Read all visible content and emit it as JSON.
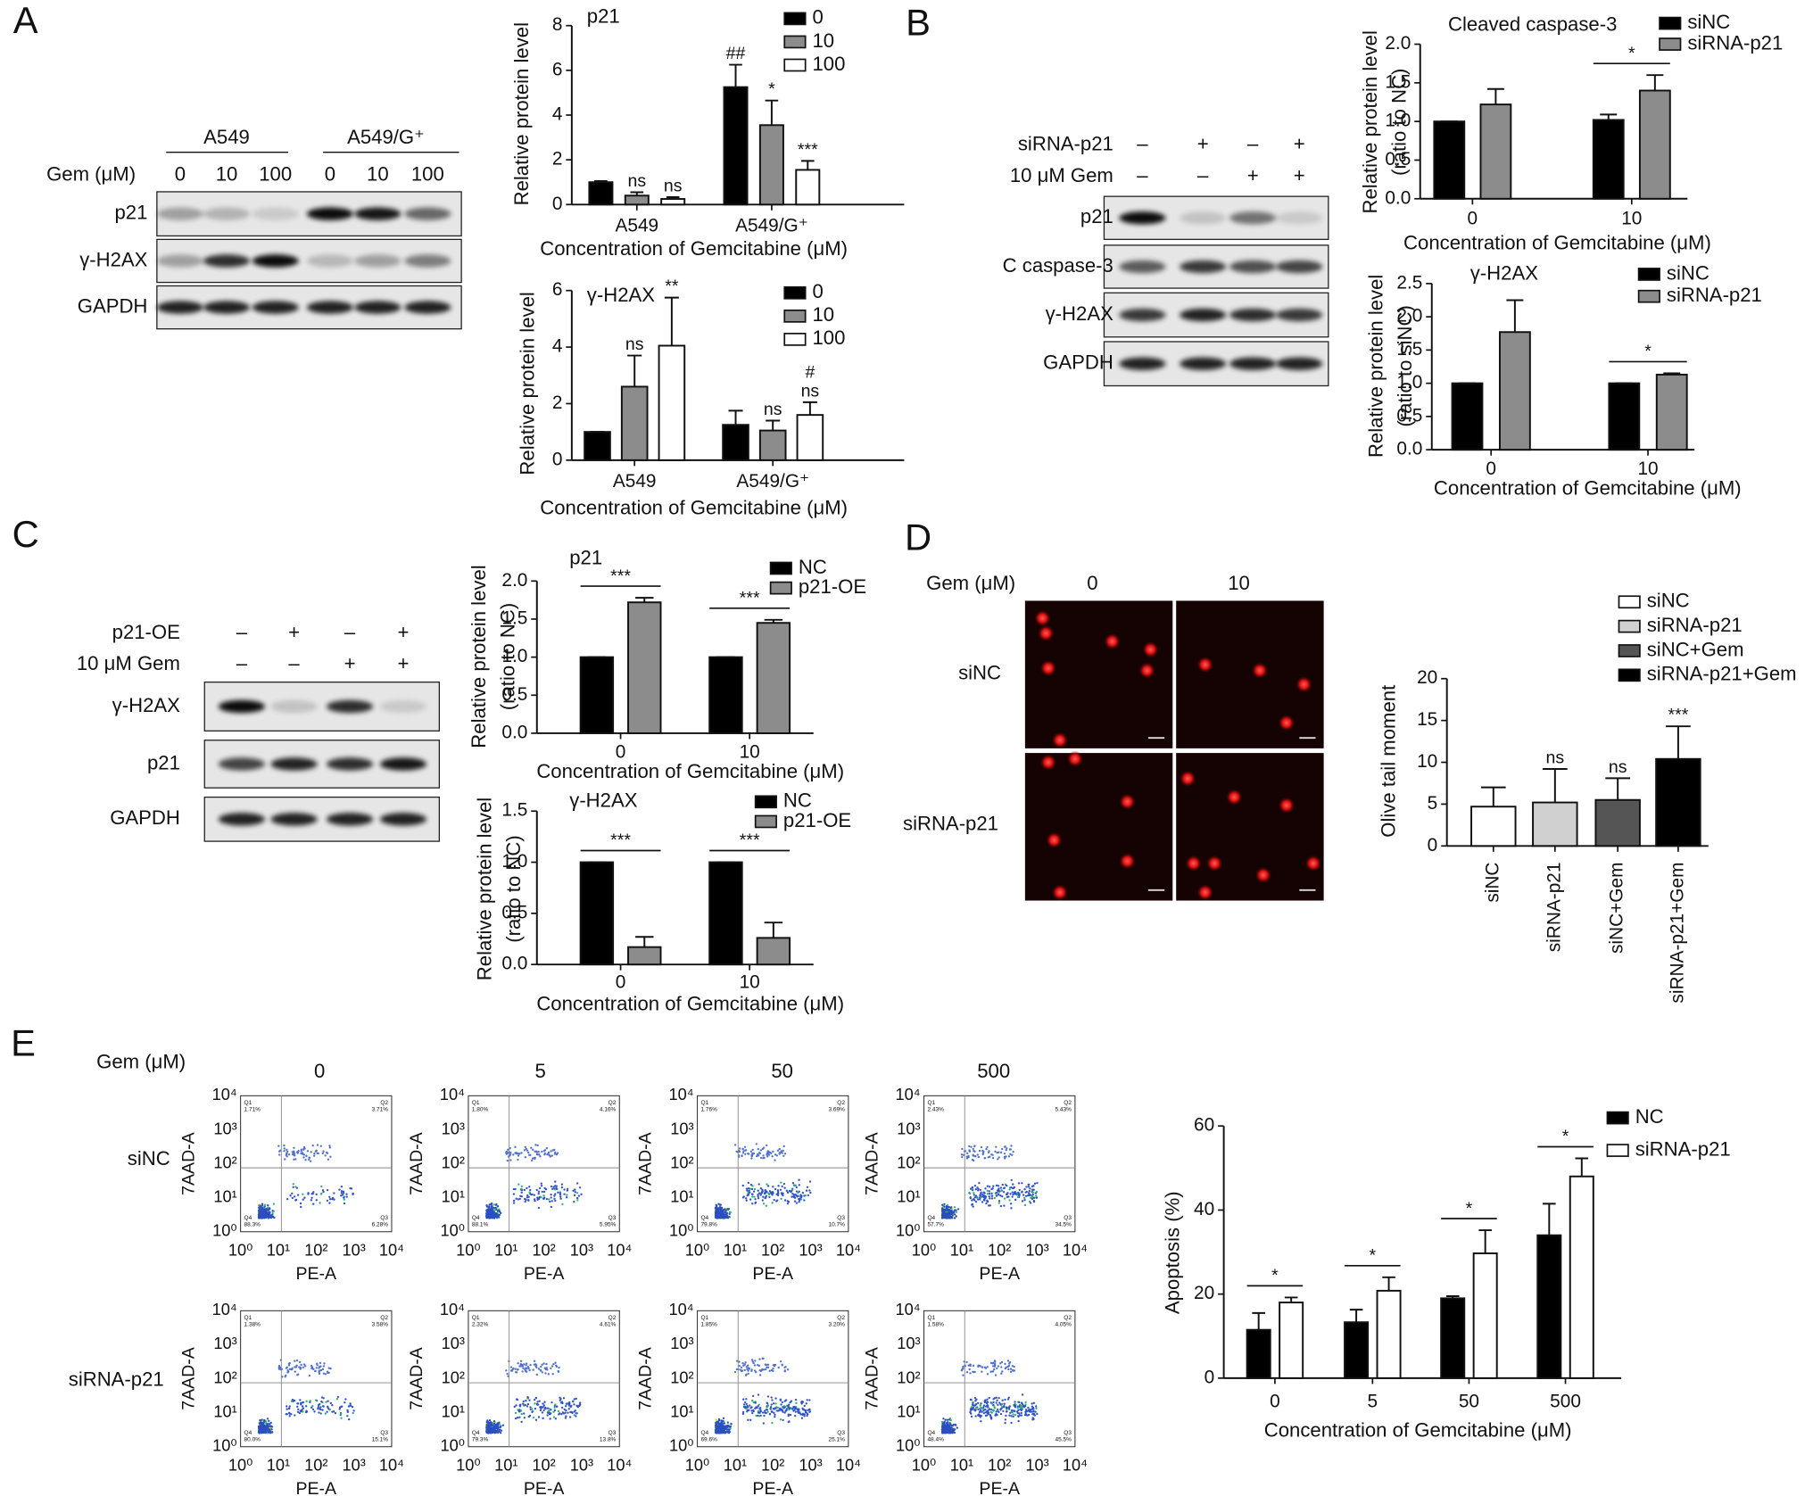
{
  "panel_labels": [
    "A",
    "B",
    "C",
    "D",
    "E"
  ],
  "blot_A": {
    "groups": [
      "A549",
      "A549/G⁺"
    ],
    "condition": "Gem (μM)",
    "lanes": [
      "0",
      "10",
      "100",
      "0",
      "10",
      "100"
    ],
    "rows": [
      "p21",
      "γ-H2AX",
      "GAPDH"
    ]
  },
  "blot_B": {
    "conditions": [
      {
        "name": "siRNA-p21",
        "lanes": [
          "–",
          "+",
          "–",
          "+"
        ]
      },
      {
        "name": "10 μM Gem",
        "lanes": [
          "–",
          "–",
          "+",
          "+"
        ]
      }
    ],
    "rows": [
      "p21",
      "C caspase-3",
      "γ-H2AX",
      "GAPDH"
    ]
  },
  "blot_C": {
    "conditions": [
      {
        "name": "p21-OE",
        "lanes": [
          "–",
          "+",
          "–",
          "+"
        ]
      },
      {
        "name": "10 μM Gem",
        "lanes": [
          "–",
          "–",
          "+",
          "+"
        ]
      }
    ],
    "rows": [
      "γ-H2AX",
      "p21",
      "GAPDH"
    ]
  },
  "comet_D": {
    "condition": "Gem (μM)",
    "columns": [
      "0",
      "10"
    ],
    "rows": [
      "siNC",
      "siRNA-p21"
    ]
  },
  "flow_E": {
    "condition": "Gem (μM)",
    "columns": [
      "0",
      "5",
      "50",
      "500"
    ],
    "rows": [
      "siNC",
      "siRNA-p21"
    ],
    "y_label": "7AAD-A",
    "x_label": "PE-A",
    "ticks": [
      "10⁰",
      "10¹",
      "10²",
      "10³",
      "10⁴"
    ],
    "quadrants": [
      "Q1",
      "Q2",
      "Q3",
      "Q4"
    ],
    "percentages": [
      [
        [
          "1.71%",
          "3.71%",
          "6.28%",
          "88.3%"
        ],
        [
          "1.80%",
          "4.16%",
          "5.95%",
          "88.1%"
        ],
        [
          "1.76%",
          "3.69%",
          "10.7%",
          "79.8%"
        ],
        [
          "2.43%",
          "5.43%",
          "34.5%",
          "57.7%"
        ]
      ],
      [
        [
          "1.38%",
          "3.58%",
          "15.1%",
          "80.0%"
        ],
        [
          "2.32%",
          "4.61%",
          "13.8%",
          "79.3%"
        ],
        [
          "1.85%",
          "3.20%",
          "25.1%",
          "69.6%"
        ],
        [
          "1.58%",
          "4.05%",
          "45.5%",
          "48.4%"
        ]
      ]
    ]
  },
  "chart_data": [
    {
      "type": "bar",
      "title": "p21",
      "categories": [
        "A549",
        "A549/G⁺"
      ],
      "series": [
        {
          "name": "0",
          "color": "#000000",
          "values": [
            1.0,
            5.25
          ],
          "errors": [
            0.05,
            1.0
          ],
          "annotations": [
            null,
            "##"
          ]
        },
        {
          "name": "10",
          "color": "#8c8c8c",
          "values": [
            0.4,
            3.55
          ],
          "errors": [
            0.15,
            1.1
          ],
          "annotations": [
            "ns",
            "*"
          ]
        },
        {
          "name": "100",
          "color": "#ffffff",
          "values": [
            0.25,
            1.55
          ],
          "errors": [
            0.08,
            0.4
          ],
          "annotations": [
            "ns",
            "***"
          ]
        }
      ],
      "ylim": [
        0,
        8
      ],
      "yticks": [
        0,
        2,
        4,
        6,
        8
      ],
      "y_label": [
        "Relative protein level"
      ],
      "x_label": "Concentration of Gemcitabine (μM)"
    },
    {
      "type": "bar",
      "title": "γ-H2AX",
      "categories": [
        "A549",
        "A549/G⁺"
      ],
      "series": [
        {
          "name": "0",
          "color": "#000000",
          "values": [
            1.0,
            1.25
          ],
          "errors": [
            0,
            0.5
          ],
          "annotations": [
            null,
            null
          ]
        },
        {
          "name": "10",
          "color": "#8c8c8c",
          "values": [
            2.6,
            1.05
          ],
          "errors": [
            1.1,
            0.35
          ],
          "annotations": [
            "ns",
            "ns"
          ]
        },
        {
          "name": "100",
          "color": "#ffffff",
          "values": [
            4.05,
            1.6
          ],
          "errors": [
            1.7,
            0.45
          ],
          "annotations": [
            "**",
            [
              "#",
              "ns"
            ]
          ]
        }
      ],
      "ylim": [
        0,
        6
      ],
      "yticks": [
        0,
        2,
        4,
        6
      ],
      "y_label": [
        "Relative protein level"
      ],
      "x_label": "Concentration of Gemcitabine (μM)"
    },
    {
      "type": "bar",
      "title": "Cleaved caspase-3",
      "categories": [
        "0",
        "10"
      ],
      "series": [
        {
          "name": "siNC",
          "color": "#000000",
          "values": [
            1.0,
            1.02
          ],
          "errors": [
            0,
            0.07
          ]
        },
        {
          "name": "siRNA-p21",
          "color": "#8c8c8c",
          "values": [
            1.22,
            1.4
          ],
          "errors": [
            0.2,
            0.2
          ]
        }
      ],
      "brackets": [
        null,
        "*"
      ],
      "ylim": [
        0,
        2
      ],
      "yticks": [
        {
          "value": 0,
          "label": "0.0"
        },
        0.5,
        {
          "value": 1,
          "label": "1.0"
        },
        1.5,
        {
          "value": 2,
          "label": "2.0"
        }
      ],
      "y_label": [
        "Relative protein level",
        "(ratio to NC)"
      ],
      "x_label": "Concentration of Gemcitabine (μM)"
    },
    {
      "type": "bar",
      "title": "γ-H2AX",
      "categories": [
        "0",
        "10"
      ],
      "series": [
        {
          "name": "siNC",
          "color": "#000000",
          "values": [
            1.0,
            1.0
          ],
          "errors": [
            0,
            0
          ]
        },
        {
          "name": "siRNA-p21",
          "color": "#8c8c8c",
          "values": [
            1.77,
            1.13
          ],
          "errors": [
            0.48,
            0.02
          ]
        }
      ],
      "brackets": [
        null,
        "*"
      ],
      "ylim": [
        0,
        2.5
      ],
      "yticks": [
        {
          "value": 0,
          "label": "0.0"
        },
        0.5,
        {
          "value": 1,
          "label": "1.0"
        },
        1.5,
        {
          "value": 2,
          "label": "2.0"
        },
        2.5
      ],
      "y_label": [
        "Relative protein level",
        "(ratio to siNC)"
      ],
      "x_label": "Concentration of Gemcitabine (μM)"
    },
    {
      "type": "bar",
      "title": "p21",
      "categories": [
        "0",
        "10"
      ],
      "series": [
        {
          "name": "NC",
          "color": "#000000",
          "values": [
            1.0,
            1.0
          ],
          "errors": [
            0,
            0
          ]
        },
        {
          "name": "p21-OE",
          "color": "#8c8c8c",
          "values": [
            1.72,
            1.45
          ],
          "errors": [
            0.06,
            0.04
          ]
        }
      ],
      "brackets": [
        "***",
        "***"
      ],
      "ylim": [
        0,
        2
      ],
      "yticks": [
        {
          "value": 0,
          "label": "0.0"
        },
        0.5,
        {
          "value": 1,
          "label": "1.0"
        },
        1.5,
        {
          "value": 2,
          "label": "2.0"
        }
      ],
      "y_label": [
        "Relative protein level",
        "(ratio to NC)"
      ],
      "x_label": "Concentration of Gemcitabine (μM)"
    },
    {
      "type": "bar",
      "title": "γ-H2AX",
      "categories": [
        "0",
        "10"
      ],
      "series": [
        {
          "name": "NC",
          "color": "#000000",
          "values": [
            1.0,
            1.0
          ],
          "errors": [
            0,
            0
          ]
        },
        {
          "name": "p21-OE",
          "color": "#8c8c8c",
          "values": [
            0.17,
            0.26
          ],
          "errors": [
            0.1,
            0.15
          ]
        }
      ],
      "brackets": [
        "***",
        "***"
      ],
      "ylim": [
        0,
        1.5
      ],
      "yticks": [
        {
          "value": 0,
          "label": "0.0"
        },
        0.5,
        {
          "value": 1,
          "label": "1.0"
        },
        1.5
      ],
      "y_label": [
        "Relative protein level",
        "(ratio to NC)"
      ],
      "x_label": "Concentration of Gemcitabine (μM)"
    },
    {
      "type": "bar",
      "categories": [
        "siNC",
        "siRNA-p21",
        "siNC+Gem",
        "siRNA-p21+Gem"
      ],
      "values": [
        4.7,
        5.2,
        5.5,
        10.4
      ],
      "errors": [
        2.3,
        4.0,
        2.6,
        3.9
      ],
      "colors": [
        "#ffffff",
        "#d0d0d0",
        "#555555",
        "#000000"
      ],
      "annotations": [
        null,
        "ns",
        "ns",
        "***"
      ],
      "ylim": [
        0,
        20
      ],
      "yticks": [
        0,
        5,
        10,
        15,
        20
      ],
      "y_label": [
        "Olive tail moment"
      ],
      "legend": true
    },
    {
      "type": "bar",
      "categories": [
        "0",
        "5",
        "50",
        "500"
      ],
      "series": [
        {
          "name": "NC",
          "color": "#000000",
          "values": [
            11.5,
            13.3,
            19,
            34
          ],
          "errors": [
            4,
            3,
            0.5,
            7.5
          ]
        },
        {
          "name": "siRNA-p21",
          "color": "#ffffff",
          "values": [
            18,
            20.8,
            29.7,
            48
          ],
          "errors": [
            1.2,
            3.2,
            5.5,
            4.3
          ]
        }
      ],
      "brackets": [
        "*",
        "*",
        "*",
        "*"
      ],
      "ylim": [
        0,
        60
      ],
      "yticks": [
        0,
        20,
        40,
        60
      ],
      "y_label": [
        "Apoptosis (%)"
      ],
      "x_label": "Concentration of Gemcitabine (μM)"
    }
  ]
}
